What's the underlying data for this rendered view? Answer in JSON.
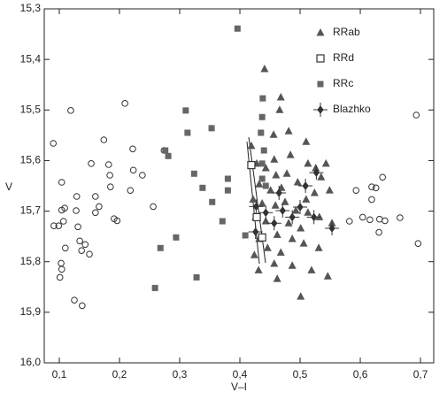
{
  "chart_data": {
    "type": "scatter",
    "x_label": "V–I",
    "y_label": "V",
    "xlim": [
      0.075,
      0.722
    ],
    "ylim": [
      16.0,
      15.3
    ],
    "xticks": [
      {
        "value": 0.1,
        "label": "0,1"
      },
      {
        "value": 0.2,
        "label": "0,2"
      },
      {
        "value": 0.3,
        "label": "0,3"
      },
      {
        "value": 0.4,
        "label": "0,4"
      },
      {
        "value": 0.5,
        "label": "0,5"
      },
      {
        "value": 0.6,
        "label": "0,6"
      },
      {
        "value": 0.7,
        "label": "0,7"
      }
    ],
    "yticks": [
      {
        "value": 15.3,
        "label": "15,3"
      },
      {
        "value": 15.4,
        "label": "15,4"
      },
      {
        "value": 15.5,
        "label": "15,5"
      },
      {
        "value": 15.6,
        "label": "15,6"
      },
      {
        "value": 15.7,
        "label": "15,7"
      },
      {
        "value": 15.8,
        "label": "15,8"
      },
      {
        "value": 15.9,
        "label": "15,9"
      },
      {
        "value": 16.0,
        "label": "16,0"
      }
    ],
    "legend": "upper right",
    "series": [
      {
        "marker": "circle-open",
        "color": "#333",
        "x": [
          0.09,
          0.091,
          0.099,
          0.104,
          0.109,
          0.107,
          0.104,
          0.11,
          0.103,
          0.104,
          0.101,
          0.119,
          0.125,
          0.138,
          0.129,
          0.128,
          0.131,
          0.134,
          0.143,
          0.137,
          0.15,
          0.153,
          0.16,
          0.16,
          0.166,
          0.174,
          0.182,
          0.184,
          0.185,
          0.191,
          0.196,
          0.209,
          0.222,
          0.223,
          0.218,
          0.238,
          0.256,
          0.274,
          0.637,
          0.619,
          0.626,
          0.619,
          0.593,
          0.604,
          0.616,
          0.632,
          0.641,
          0.631,
          0.666,
          0.693,
          0.696,
          0.582
        ],
        "values": [
          15.566,
          15.729,
          15.729,
          15.698,
          15.694,
          15.72,
          15.643,
          15.773,
          15.803,
          15.815,
          15.831,
          15.501,
          15.876,
          15.887,
          15.671,
          15.699,
          15.731,
          15.759,
          15.766,
          15.778,
          15.785,
          15.606,
          15.671,
          15.703,
          15.691,
          15.559,
          15.608,
          15.629,
          15.652,
          15.715,
          15.719,
          15.487,
          15.577,
          15.619,
          15.659,
          15.629,
          15.691,
          15.58,
          15.633,
          15.652,
          15.654,
          15.677,
          15.659,
          15.712,
          15.717,
          15.716,
          15.719,
          15.742,
          15.713,
          15.51,
          15.764,
          15.72
        ]
      },
      {
        "name": "RRab",
        "marker": "triangle",
        "color": "#555",
        "x": [
          0.441,
          0.468,
          0.466,
          0.481,
          0.419,
          0.456,
          0.51,
          0.484,
          0.457,
          0.513,
          0.526,
          0.543,
          0.428,
          0.443,
          0.46,
          0.478,
          0.496,
          0.535,
          0.432,
          0.451,
          0.469,
          0.51,
          0.524,
          0.549,
          0.422,
          0.437,
          0.459,
          0.475,
          0.493,
          0.513,
          0.532,
          0.426,
          0.443,
          0.481,
          0.501,
          0.553,
          0.462,
          0.487,
          0.432,
          0.446,
          0.468,
          0.506,
          0.531,
          0.424,
          0.457,
          0.431,
          0.487,
          0.546,
          0.501,
          0.519,
          0.462
        ],
        "values": [
          15.419,
          15.475,
          15.5,
          15.542,
          15.571,
          15.549,
          15.563,
          15.589,
          15.598,
          15.606,
          15.615,
          15.606,
          15.606,
          15.615,
          15.629,
          15.626,
          15.643,
          15.633,
          15.647,
          15.659,
          15.654,
          15.677,
          15.664,
          15.659,
          15.677,
          15.685,
          15.689,
          15.682,
          15.699,
          15.703,
          15.712,
          15.712,
          15.72,
          15.724,
          15.734,
          15.724,
          15.747,
          15.755,
          15.755,
          15.773,
          15.782,
          15.764,
          15.773,
          15.787,
          15.804,
          15.817,
          15.808,
          15.829,
          15.869,
          15.817,
          15.834
        ]
      },
      {
        "name": "RRd",
        "marker": "square-open",
        "color": "#333",
        "x": [
          0.419,
          0.428,
          0.437
        ],
        "values": [
          15.609,
          15.712,
          15.752
        ]
      },
      {
        "name": "RRc",
        "marker": "square",
        "color": "#666",
        "x": [
          0.396,
          0.31,
          0.353,
          0.313,
          0.276,
          0.281,
          0.324,
          0.338,
          0.38,
          0.38,
          0.354,
          0.371,
          0.409,
          0.294,
          0.268,
          0.259,
          0.328,
          0.438,
          0.437,
          0.435,
          0.44,
          0.437,
          0.437,
          0.443
        ],
        "values": [
          15.339,
          15.501,
          15.536,
          15.545,
          15.58,
          15.591,
          15.626,
          15.654,
          15.636,
          15.659,
          15.682,
          15.72,
          15.748,
          15.752,
          15.773,
          15.852,
          15.831,
          15.477,
          15.514,
          15.545,
          15.58,
          15.606,
          15.636,
          15.65
        ]
      },
      {
        "name": "Blazhko",
        "marker": "star-cross",
        "color": "#333",
        "x": [
          0.427,
          0.443,
          0.471,
          0.487,
          0.465,
          0.509,
          0.527,
          0.523,
          0.553,
          0.457,
          0.5,
          0.426
        ],
        "values": [
          15.691,
          15.703,
          15.699,
          15.712,
          15.664,
          15.65,
          15.624,
          15.712,
          15.734,
          15.724,
          15.692,
          15.741
        ]
      }
    ]
  }
}
